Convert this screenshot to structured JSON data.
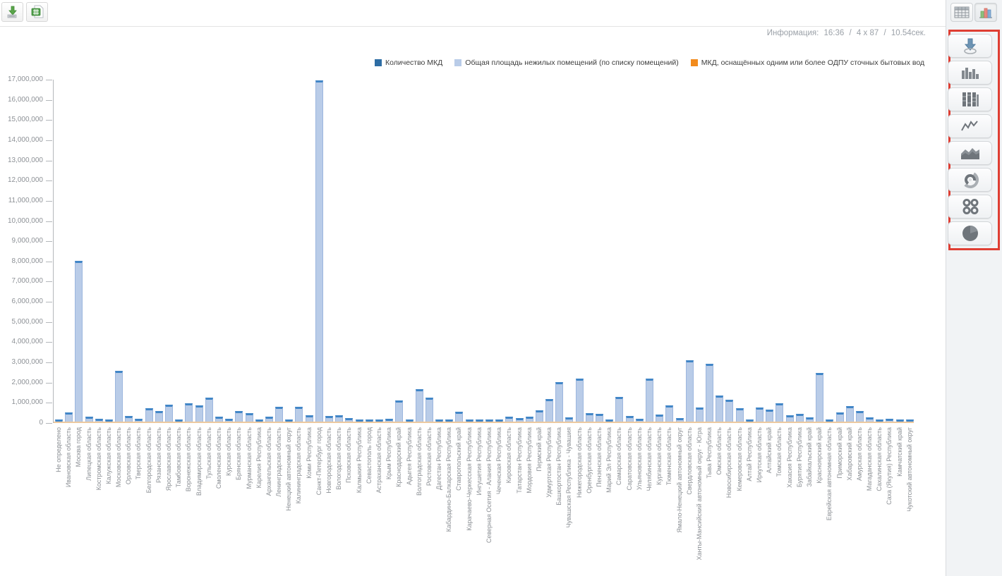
{
  "toolbar": {
    "buttons": [
      {
        "icon": "download-report-icon"
      },
      {
        "icon": "excel-export-icon"
      }
    ]
  },
  "info": {
    "label": "Информация:",
    "time": "16:36",
    "sep": "/",
    "matrix": "4 x 87",
    "duration": "10.54сек."
  },
  "sidebar": {
    "view_buttons": [
      {
        "icon": "table-view-icon",
        "active": false
      },
      {
        "icon": "chart-view-icon",
        "active": true
      }
    ],
    "chart_type_buttons": [
      {
        "icon": "download-chart-icon"
      },
      {
        "icon": "column-chart-icon"
      },
      {
        "icon": "stacked-column-chart-icon"
      },
      {
        "icon": "line-chart-icon"
      },
      {
        "icon": "area-chart-icon"
      },
      {
        "icon": "radial-chart-icon"
      },
      {
        "icon": "multi-donut-chart-icon"
      },
      {
        "icon": "pie-chart-icon"
      }
    ],
    "highlight_color": "#df3e33"
  },
  "chart_data": {
    "type": "bar",
    "title": "",
    "legend_position": "top",
    "grid": false,
    "xlabel_rotation": -90,
    "ylim": [
      0,
      17000000
    ],
    "ytick_step": 1000000,
    "ytick_labels": [
      "0",
      "1,000,000",
      "2,000,000",
      "3,000,000",
      "4,000,000",
      "5,000,000",
      "6,000,000",
      "7,000,000",
      "8,000,000",
      "9,000,000",
      "10,000,000",
      "11,000,000",
      "12,000,000",
      "13,000,000",
      "14,000,000",
      "15,000,000",
      "16,000,000",
      "17,000,000"
    ],
    "bar_color": "#b9cce8",
    "bar_border": "#9cb6de",
    "bar_cap_color": "#4186c7",
    "baseline_color": "#ecc9a0",
    "categories": [
      "Не определено",
      "Ивановская область",
      "Москва город",
      "Липецкая область",
      "Костромская область",
      "Калужская область",
      "Московская область",
      "Орловская область",
      "Тверская область",
      "Белгородская область",
      "Рязанская область",
      "Ярославская область",
      "Тамбовская область",
      "Воронежская область",
      "Владимирская область",
      "Тульская область",
      "Смоленская область",
      "Курская область",
      "Брянская область",
      "Мурманская область",
      "Карелия Республика",
      "Архангельская область",
      "Ленинградская область",
      "Ненецкий автономный округ",
      "Калининградская область",
      "Коми Республика",
      "Санкт-Петербург город",
      "Новгородская область",
      "Вологодская область",
      "Псковская область",
      "Калмыкия Республика",
      "Севастополь город",
      "Астраханская область",
      "Крым Республика",
      "Краснодарский край",
      "Адыгея Республика",
      "Волгоградская область",
      "Ростовская область",
      "Дагестан Республика",
      "Кабардино-Балкарская Республика",
      "Ставропольский край",
      "Карачаево-Черкесская Республика",
      "Ингушетия Республика",
      "Северная Осетия - Алания Республика",
      "Чеченская Республика",
      "Кировская область",
      "Татарстан Республика",
      "Мордовия Республика",
      "Пермский край",
      "Удмуртская Республика",
      "Башкортостан Республика",
      "Чувашская Республика - Чувашия",
      "Нижегородская область",
      "Оренбургская область",
      "Пензенская область",
      "Марий Эл Республика",
      "Самарская область",
      "Саратовская область",
      "Ульяновская область",
      "Челябинская область",
      "Курганская область",
      "Тюменская область",
      "Ямало-Ненецкий автономный округ",
      "Свердловская область",
      "Ханты-Мансийский автономный округ - Югра",
      "Тыва Республика",
      "Омская область",
      "Новосибирская область",
      "Кемеровская область",
      "Алтай Республика",
      "Иркутская область",
      "Алтайский край",
      "Томская область",
      "Хакасия Республика",
      "Бурятия Республика",
      "Забайкальский край",
      "Красноярский край",
      "Еврейская автономная область",
      "Приморский край",
      "Хабаровский край",
      "Амурская область",
      "Магаданская область",
      "Сахалинская область",
      "Саха (Якутия) Республика",
      "Камчатский край",
      "Чукотский автономный округ"
    ],
    "series": [
      {
        "name": "Количество МКД",
        "color": "#2e6da4",
        "values_visible": false,
        "note": "bars render at negligible height at this axis scale (visible only as tiny dark strips at the baseline)"
      },
      {
        "name": "Общая площадь нежилых помещений (по списку помещений)",
        "color": "#b9cce8",
        "values_visible": true,
        "values": [
          30000,
          450000,
          7960000,
          230000,
          140000,
          90000,
          2500000,
          290000,
          140000,
          670000,
          530000,
          850000,
          120000,
          910000,
          810000,
          1200000,
          230000,
          140000,
          520000,
          410000,
          120000,
          260000,
          740000,
          20000,
          720000,
          300000,
          16900000,
          290000,
          330000,
          170000,
          40000,
          70000,
          120000,
          140000,
          1050000,
          60000,
          1600000,
          1200000,
          90000,
          60000,
          500000,
          90000,
          10000,
          20000,
          30000,
          260000,
          170000,
          230000,
          560000,
          1110000,
          1950000,
          210000,
          2120000,
          430000,
          380000,
          120000,
          1210000,
          280000,
          140000,
          2120000,
          350000,
          820000,
          180000,
          3050000,
          700000,
          2850000,
          1280000,
          1080000,
          660000,
          30000,
          700000,
          600000,
          920000,
          310000,
          370000,
          220000,
          2420000,
          50000,
          470000,
          760000,
          520000,
          200000,
          60000,
          140000,
          50000,
          20000
        ],
        "values_estimated_from_pixels": true
      },
      {
        "name": "МКД, оснащённых одним или более ОДПУ сточных бытовых вод",
        "color": "#f28b1d",
        "values_visible": false,
        "note": "renders as a flat orange line along the zero baseline"
      }
    ]
  }
}
